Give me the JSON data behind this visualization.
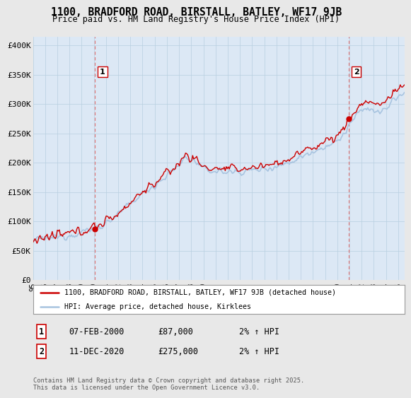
{
  "title": "1100, BRADFORD ROAD, BIRSTALL, BATLEY, WF17 9JB",
  "subtitle": "Price paid vs. HM Land Registry's House Price Index (HPI)",
  "ylabel_ticks": [
    "£0",
    "£50K",
    "£100K",
    "£150K",
    "£200K",
    "£250K",
    "£300K",
    "£350K",
    "£400K"
  ],
  "ytick_values": [
    0,
    50000,
    100000,
    150000,
    200000,
    250000,
    300000,
    350000,
    400000
  ],
  "ylim": [
    0,
    415000
  ],
  "xlim_start": 1995.0,
  "xlim_end": 2025.5,
  "hpi_color": "#a8c4e0",
  "price_color": "#cc0000",
  "marker1_date": 2000.09,
  "marker1_price": 87000,
  "marker2_date": 2020.93,
  "marker2_price": 275000,
  "annotation1_label": "1",
  "annotation2_label": "2",
  "legend_line1": "1100, BRADFORD ROAD, BIRSTALL, BATLEY, WF17 9JB (detached house)",
  "legend_line2": "HPI: Average price, detached house, Kirklees",
  "background_color": "#e8e8e8",
  "plot_background": "#dce8f5",
  "grid_color": "#b8cfe0",
  "xtick_years": [
    1995,
    1996,
    1997,
    1998,
    1999,
    2000,
    2001,
    2002,
    2003,
    2004,
    2005,
    2006,
    2007,
    2008,
    2009,
    2010,
    2011,
    2012,
    2013,
    2014,
    2015,
    2016,
    2017,
    2018,
    2019,
    2020,
    2021,
    2022,
    2023,
    2024,
    2025
  ],
  "footer": "Contains HM Land Registry data © Crown copyright and database right 2025.\nThis data is licensed under the Open Government Licence v3.0."
}
